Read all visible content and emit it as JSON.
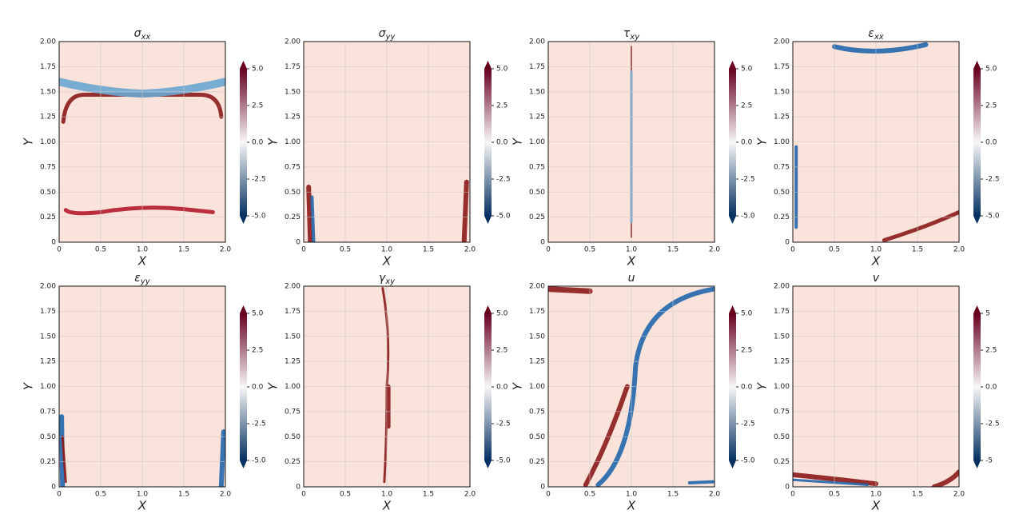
{
  "chart_data": [
    {
      "type": "contour",
      "title": {
        "symbol": "σ",
        "subscript": "xx"
      },
      "x_label": "X",
      "y_label": "Y",
      "xlim": [
        0,
        2
      ],
      "ylim": [
        0,
        2
      ],
      "xticks": [
        0,
        0.5,
        {
          "value": 1,
          "label": "1.0"
        },
        1.5,
        {
          "value": 2,
          "label": "2.0"
        }
      ],
      "yticks": [
        0,
        0.25,
        {
          "value": 0.5,
          "label": "0.50"
        },
        0.75,
        {
          "value": 1,
          "label": "1.00"
        },
        1.25,
        {
          "value": 1.5,
          "label": "1.50"
        },
        1.75,
        {
          "value": 2,
          "label": "2.00"
        }
      ],
      "clim": [
        -5,
        5
      ],
      "cticks": [
        {
          "value": 5,
          "label": "5.0"
        },
        2.5,
        {
          "value": 0,
          "label": "0.0"
        },
        -2.5,
        {
          "value": -5,
          "label": "-5.0"
        }
      ],
      "colors": [
        "#053061",
        "#f7f7f7",
        "#67001f"
      ],
      "grid": true
    },
    {
      "type": "contour",
      "title": {
        "symbol": "σ",
        "subscript": "yy"
      },
      "x_label": "X",
      "y_label": "Y",
      "xlim": [
        0,
        2
      ],
      "ylim": [
        0,
        2
      ],
      "xticks": [
        0,
        0.5,
        {
          "value": 1,
          "label": "1.0"
        },
        1.5,
        {
          "value": 2,
          "label": "2.0"
        }
      ],
      "yticks": [
        0,
        0.25,
        {
          "value": 0.5,
          "label": "0.50"
        },
        0.75,
        {
          "value": 1,
          "label": "1.00"
        },
        1.25,
        {
          "value": 1.5,
          "label": "1.50"
        },
        1.75,
        {
          "value": 2,
          "label": "2.00"
        }
      ],
      "clim": [
        -5,
        5
      ],
      "cticks": [
        {
          "value": 5,
          "label": "5.0"
        },
        2.5,
        {
          "value": 0,
          "label": "0.0"
        },
        -2.5,
        {
          "value": -5,
          "label": "-5.0"
        }
      ],
      "colors": [
        "#053061",
        "#f7f7f7",
        "#67001f"
      ],
      "grid": true
    },
    {
      "type": "contour",
      "title": {
        "symbol": "τ",
        "subscript": "xy"
      },
      "x_label": "X",
      "y_label": "Y",
      "xlim": [
        0,
        2
      ],
      "ylim": [
        0,
        2
      ],
      "xticks": [
        0,
        0.5,
        {
          "value": 1,
          "label": "1.0"
        },
        1.5,
        {
          "value": 2,
          "label": "2.0"
        }
      ],
      "yticks": [
        0,
        0.25,
        {
          "value": 0.5,
          "label": "0.50"
        },
        0.75,
        {
          "value": 1,
          "label": "1.00"
        },
        1.25,
        {
          "value": 1.5,
          "label": "1.50"
        },
        1.75,
        {
          "value": 2,
          "label": "2.00"
        }
      ],
      "clim": [
        -5,
        5
      ],
      "cticks": [
        {
          "value": 5,
          "label": "5.0"
        },
        2.5,
        {
          "value": 0,
          "label": "0.0"
        },
        -2.5,
        {
          "value": -5,
          "label": "-5.0"
        }
      ],
      "colors": [
        "#053061",
        "#f7f7f7",
        "#67001f"
      ],
      "grid": true
    },
    {
      "type": "contour",
      "title": {
        "symbol": "ε",
        "subscript": "xx"
      },
      "x_label": "X",
      "y_label": "Y",
      "xlim": [
        0,
        2
      ],
      "ylim": [
        0,
        2
      ],
      "xticks": [
        0,
        0.5,
        {
          "value": 1,
          "label": "1.0"
        },
        1.5,
        {
          "value": 2,
          "label": "2.0"
        }
      ],
      "yticks": [
        0,
        0.25,
        {
          "value": 0.5,
          "label": "0.50"
        },
        0.75,
        {
          "value": 1,
          "label": "1.00"
        },
        1.25,
        {
          "value": 1.5,
          "label": "1.50"
        },
        1.75,
        {
          "value": 2,
          "label": "2.00"
        }
      ],
      "clim": [
        -5,
        5
      ],
      "cticks": [
        {
          "value": 5,
          "label": "5.0"
        },
        2.5,
        {
          "value": 0,
          "label": "0.0"
        },
        -2.5,
        {
          "value": -5,
          "label": "-5.0"
        }
      ],
      "colors": [
        "#053061",
        "#f7f7f7",
        "#67001f"
      ],
      "grid": true
    },
    {
      "type": "contour",
      "title": {
        "symbol": "ε",
        "subscript": "yy"
      },
      "x_label": "X",
      "y_label": "Y",
      "xlim": [
        0,
        2
      ],
      "ylim": [
        0,
        2
      ],
      "xticks": [
        0,
        0.5,
        {
          "value": 1,
          "label": "1.0"
        },
        1.5,
        {
          "value": 2,
          "label": "2.0"
        }
      ],
      "yticks": [
        0,
        0.25,
        {
          "value": 0.5,
          "label": "0.50"
        },
        0.75,
        {
          "value": 1,
          "label": "1.00"
        },
        1.25,
        {
          "value": 1.5,
          "label": "1.50"
        },
        1.75,
        {
          "value": 2,
          "label": "2.00"
        }
      ],
      "clim": [
        -5,
        5
      ],
      "cticks": [
        {
          "value": 5,
          "label": "5.0"
        },
        2.5,
        {
          "value": 0,
          "label": "0.0"
        },
        -2.5,
        {
          "value": -5,
          "label": "-5.0"
        }
      ],
      "colors": [
        "#053061",
        "#f7f7f7",
        "#67001f"
      ],
      "grid": true
    },
    {
      "type": "contour",
      "title": {
        "symbol": "γ",
        "subscript": "xy"
      },
      "x_label": "X",
      "y_label": "Y",
      "xlim": [
        0,
        2
      ],
      "ylim": [
        0,
        2
      ],
      "xticks": [
        0,
        0.5,
        {
          "value": 1,
          "label": "1.0"
        },
        1.5,
        {
          "value": 2,
          "label": "2.0"
        }
      ],
      "yticks": [
        0,
        0.25,
        {
          "value": 0.5,
          "label": "0.50"
        },
        0.75,
        {
          "value": 1,
          "label": "1.00"
        },
        1.25,
        {
          "value": 1.5,
          "label": "1.50"
        },
        1.75,
        {
          "value": 2,
          "label": "2.00"
        }
      ],
      "clim": [
        -5,
        5
      ],
      "cticks": [
        {
          "value": 5,
          "label": "5.0"
        },
        2.5,
        {
          "value": 0,
          "label": "0.0"
        },
        -2.5,
        {
          "value": -5,
          "label": "-5.0"
        }
      ],
      "colors": [
        "#053061",
        "#f7f7f7",
        "#67001f"
      ],
      "grid": true
    },
    {
      "type": "contour",
      "title": {
        "symbol": "u",
        "subscript": ""
      },
      "x_label": "X",
      "y_label": "Y",
      "xlim": [
        0,
        2
      ],
      "ylim": [
        0,
        2
      ],
      "xticks": [
        0,
        0.5,
        {
          "value": 1,
          "label": "1.0"
        },
        1.5,
        {
          "value": 2,
          "label": "2.0"
        }
      ],
      "yticks": [
        0,
        0.25,
        {
          "value": 0.5,
          "label": "0.50"
        },
        0.75,
        {
          "value": 1,
          "label": "1.00"
        },
        1.25,
        {
          "value": 1.5,
          "label": "1.50"
        },
        1.75,
        {
          "value": 2,
          "label": "2.00"
        }
      ],
      "clim": [
        -5,
        5
      ],
      "cticks": [
        {
          "value": 5,
          "label": "5.0"
        },
        2.5,
        {
          "value": 0,
          "label": "0.0"
        },
        -2.5,
        {
          "value": -5,
          "label": "-5.0"
        }
      ],
      "colors": [
        "#053061",
        "#f7f7f7",
        "#67001f"
      ],
      "grid": true
    },
    {
      "type": "contour",
      "title": {
        "symbol": "v",
        "subscript": ""
      },
      "x_label": "X",
      "y_label": "Y",
      "xlim": [
        0,
        2
      ],
      "ylim": [
        0,
        2
      ],
      "xticks": [
        0,
        0.5,
        {
          "value": 1,
          "label": "1.0"
        },
        1.5,
        {
          "value": 2,
          "label": "2.0"
        }
      ],
      "yticks": [
        0,
        0.25,
        {
          "value": 0.5,
          "label": "0.50"
        },
        0.75,
        {
          "value": 1,
          "label": "1.00"
        },
        1.25,
        {
          "value": 1.5,
          "label": "1.50"
        },
        1.75,
        {
          "value": 2,
          "label": "2.00"
        }
      ],
      "clim": [
        -5,
        5
      ],
      "cticks": [
        5,
        2.5,
        {
          "value": 0,
          "label": "0.0"
        },
        -2.5,
        -5
      ],
      "colors": [
        "#053061",
        "#f7f7f7",
        "#67001f"
      ],
      "grid": true
    }
  ]
}
